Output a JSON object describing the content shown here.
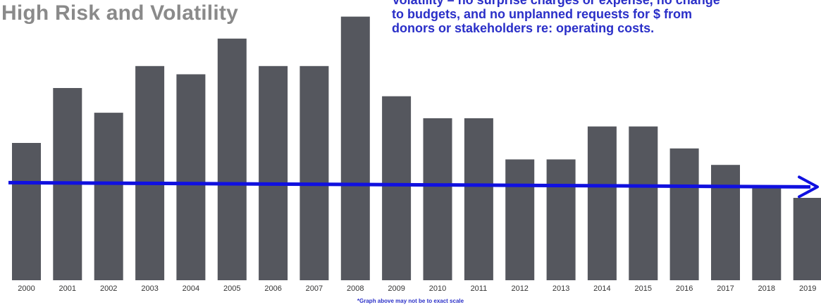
{
  "header": {
    "title": "High Risk and Volatility",
    "note_lines": [
      "Volatility – no surprise charges or expense, no change",
      "to budgets, and no unplanned requests for $ from",
      "donors or stakeholders re: operating costs."
    ]
  },
  "footnote": "*Graph above may not be to exact scale",
  "colors": {
    "bar": "#55575e",
    "trend": "#1010e0",
    "title": "#8a8a8a",
    "note": "#2a2fc8"
  },
  "chart_data": {
    "type": "bar",
    "categories": [
      "2000",
      "2001",
      "2002",
      "2003",
      "2004",
      "2005",
      "2006",
      "2007",
      "2008",
      "2009",
      "2010",
      "2011",
      "2012",
      "2013",
      "2014",
      "2015",
      "2016",
      "2017",
      "2018",
      "2019"
    ],
    "values": [
      50,
      70,
      61,
      78,
      75,
      88,
      78,
      78,
      96,
      67,
      59,
      59,
      44,
      44,
      56,
      56,
      48,
      42,
      34,
      30
    ],
    "ylim": [
      0,
      100
    ],
    "trend_line": {
      "value": 34,
      "arrow": "right"
    },
    "grid": false,
    "legend": "none"
  }
}
